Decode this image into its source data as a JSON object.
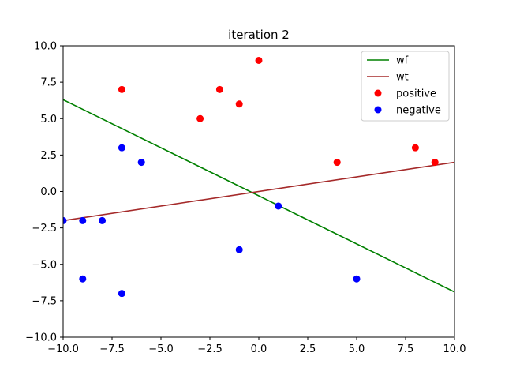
{
  "chart_data": {
    "type": "scatter",
    "title": "iteration 2",
    "xlabel": "",
    "ylabel": "",
    "xlim": [
      -10,
      10
    ],
    "ylim": [
      -10,
      10
    ],
    "grid": false,
    "legend_position": "top-right",
    "x_ticks": [
      -10,
      -7.5,
      -5,
      -2.5,
      0,
      2.5,
      5,
      7.5,
      10
    ],
    "x_tick_labels": [
      "−10.0",
      "−7.5",
      "−5.0",
      "−2.5",
      "0.0",
      "2.5",
      "5.0",
      "7.5",
      "10.0"
    ],
    "y_ticks": [
      10,
      7.5,
      5,
      2.5,
      0,
      -2.5,
      -5,
      -7.5,
      -10
    ],
    "y_tick_labels": [
      "10.0",
      "7.5",
      "5.0",
      "2.5",
      "0.0",
      "−2.5",
      "−5.0",
      "−7.5",
      "−10.0"
    ],
    "lines": [
      {
        "name": "wf",
        "color": "#008000",
        "x": [
          -10,
          10
        ],
        "y": [
          6.3,
          -6.9
        ]
      },
      {
        "name": "wt",
        "color": "#a52a2a",
        "x": [
          -10,
          10
        ],
        "y": [
          -2,
          2
        ]
      }
    ],
    "series": [
      {
        "name": "positive",
        "color": "#ff0000",
        "points": [
          [
            -7,
            7
          ],
          [
            -3,
            5
          ],
          [
            -2,
            7
          ],
          [
            -1,
            6
          ],
          [
            0,
            9
          ],
          [
            4,
            2
          ],
          [
            8,
            3
          ],
          [
            9,
            2
          ]
        ]
      },
      {
        "name": "negative",
        "color": "#0000ff",
        "points": [
          [
            -10,
            -2
          ],
          [
            -9,
            -2
          ],
          [
            -8,
            -2
          ],
          [
            -9,
            -6
          ],
          [
            -7,
            3
          ],
          [
            -6,
            2
          ],
          [
            -7,
            -7
          ],
          [
            1,
            -1
          ],
          [
            -1,
            -4
          ],
          [
            5,
            -6
          ]
        ]
      }
    ]
  }
}
